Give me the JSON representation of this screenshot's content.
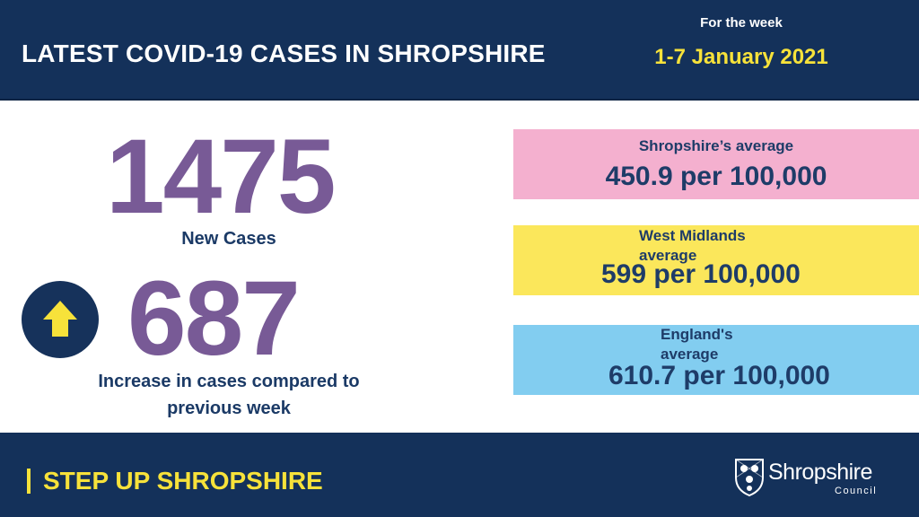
{
  "header": {
    "title": "LATEST COVID-19 CASES IN SHROPSHIRE",
    "week_label": "For the week",
    "week_date": "1-7 January 2021"
  },
  "main": {
    "new_cases_value": "1475",
    "new_cases_label": "New Cases",
    "increase_value": "687",
    "increase_label": "Increase in cases compared to previous week",
    "trend_icon": "arrow-up-icon"
  },
  "stats": {
    "shropshire": {
      "heading": "Shropshire’s average",
      "value": "450.9 per 100,000",
      "color": "#f4b0cf"
    },
    "west_midlands": {
      "heading": "West Midlands average",
      "value": "599 per 100,000",
      "color": "#fbe75b"
    },
    "england": {
      "heading": "England's average",
      "value": "610.7 per 100,000",
      "color": "#82cdf0"
    }
  },
  "footer": {
    "tagline": "STEP UP SHROPSHIRE",
    "logo_name": "Shropshire",
    "logo_sub": "Council",
    "logo_icon": "shield-crest-icon"
  },
  "colors": {
    "navy": "#14315a",
    "accent_yellow": "#f7e23a",
    "number_purple": "#785a96"
  }
}
